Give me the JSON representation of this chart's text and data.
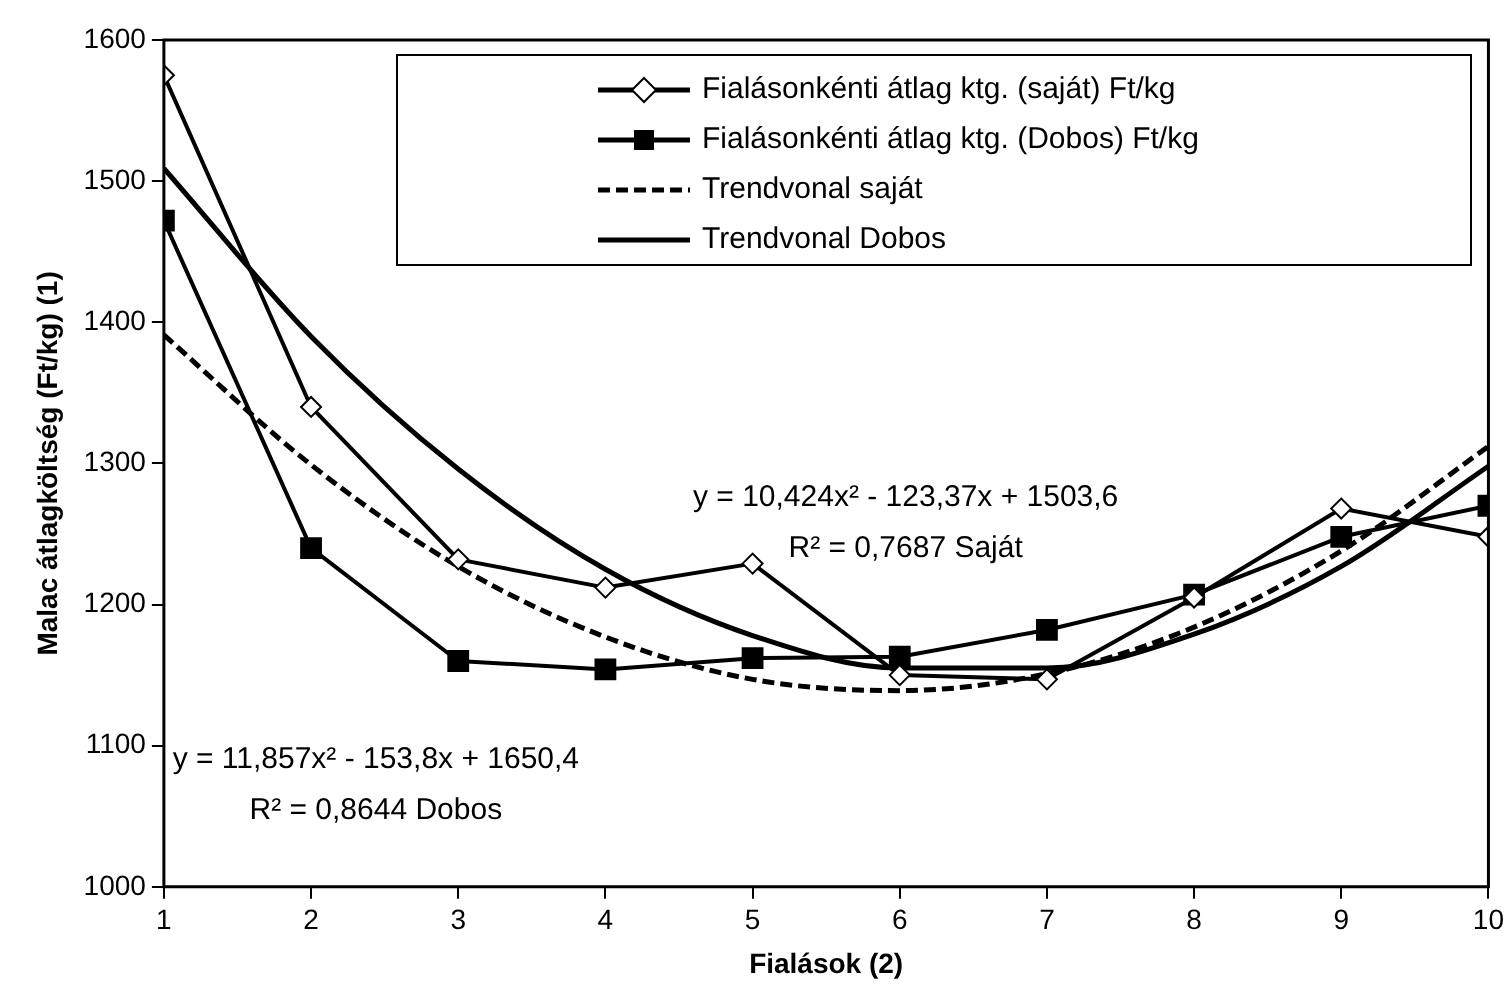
{
  "chart_data": {
    "type": "line",
    "xlabel": "Fialások (2)",
    "ylabel": "Malac átlagköltség (Ft/kg) (1)",
    "x": [
      1,
      2,
      3,
      4,
      5,
      6,
      7,
      8,
      9,
      10
    ],
    "xlim": [
      1,
      10
    ],
    "xticks": [
      1,
      2,
      3,
      4,
      5,
      6,
      7,
      8,
      9,
      10
    ],
    "ylim": [
      1000,
      1600
    ],
    "yticks": [
      1000,
      1100,
      1200,
      1300,
      1400,
      1500,
      1600
    ],
    "grid": false,
    "legend": "top right",
    "series": [
      {
        "name": "Fialásonkénti átlag ktg. (saját) Ft/kg",
        "color": "#000000",
        "marker": "diamond",
        "line_style": "solid",
        "values": [
          1575,
          1340,
          1232,
          1212,
          1229,
          1150,
          1147,
          1205,
          1268,
          1248
        ]
      },
      {
        "name": "Fialásonkénti átlag ktg. (Dobos) Ft/kg",
        "color": "#000000",
        "marker": "square",
        "line_style": "solid",
        "values": [
          1472,
          1240,
          1160,
          1154,
          1162,
          1163,
          1182,
          1207,
          1248,
          1270
        ]
      },
      {
        "name": "Trendvonal saját",
        "color": "#000000",
        "marker": "none",
        "line_style": "dashed",
        "values": [
          1391,
          1299,
          1227,
          1177,
          1147,
          1139,
          1151,
          1184,
          1238,
          1312
        ]
      },
      {
        "name": "Trendvonal Dobos",
        "color": "#000000",
        "marker": "none",
        "line_style": "solid",
        "values": [
          1509,
          1390,
          1296,
          1225,
          1178,
          1155,
          1155,
          1179,
          1227,
          1298
        ]
      }
    ],
    "annotations": [
      "y = 10,424x² - 123,37x + 1503,6",
      "R² = 0,7687 Saját",
      "y = 11,857x² - 153,8x + 1650,4",
      "R² = 0,8644 Dobos"
    ]
  }
}
